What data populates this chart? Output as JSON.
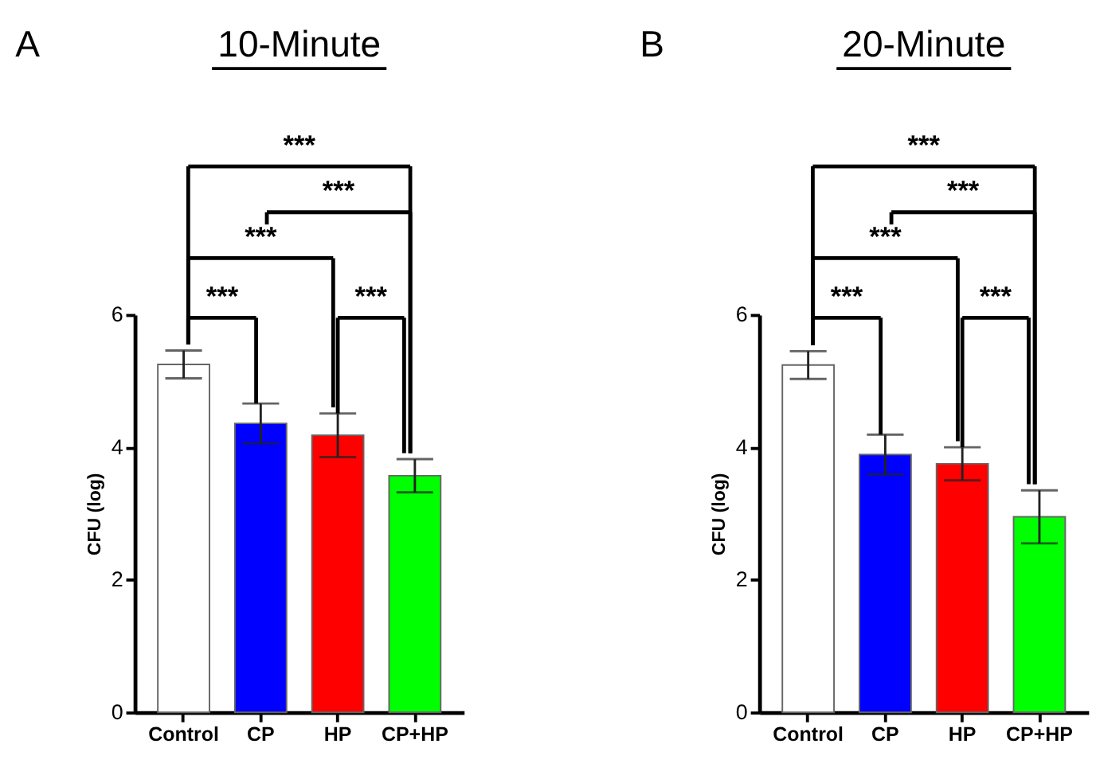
{
  "chart_data": [
    {
      "type": "bar",
      "title": "10-Minute",
      "ylabel": "CFU (log)",
      "categories": [
        "Control",
        "CP",
        "HP",
        "CP+HP"
      ],
      "values": [
        5.25,
        4.36,
        4.18,
        3.57
      ],
      "errors": [
        0.21,
        0.3,
        0.33,
        0.25
      ],
      "colors": [
        "#ffffff",
        "#0000ff",
        "#ff0000",
        "#00ff00"
      ],
      "ylim": [
        0,
        6
      ],
      "yticks": [
        0,
        2,
        4,
        6
      ],
      "grid": false,
      "annotations": [
        "A",
        {
          "text": "***",
          "x": "CP",
          "y": 4.66
        },
        {
          "text": "***",
          "x": "HP",
          "y": 4.51
        },
        "***",
        "***",
        "***"
      ]
    },
    {
      "type": "bar",
      "title": "20-Minute",
      "ylabel": "CFU (log)",
      "categories": [
        "Control",
        "CP",
        "HP",
        "CP+HP"
      ],
      "values": [
        5.24,
        3.89,
        3.75,
        2.95
      ],
      "errors": [
        0.21,
        0.3,
        0.25,
        0.4
      ],
      "colors": [
        "#ffffff",
        "#0000ff",
        "#ff0000",
        "#00ff00"
      ],
      "ylim": [
        0,
        6
      ],
      "yticks": [
        0,
        2,
        4,
        6
      ],
      "grid": false,
      "annotations": [
        "B",
        {
          "text": "***",
          "x": "CP",
          "y": 4.19
        },
        {
          "text": "***",
          "x": "HP",
          "y": 4.0
        },
        "***",
        "***",
        "***"
      ]
    }
  ]
}
